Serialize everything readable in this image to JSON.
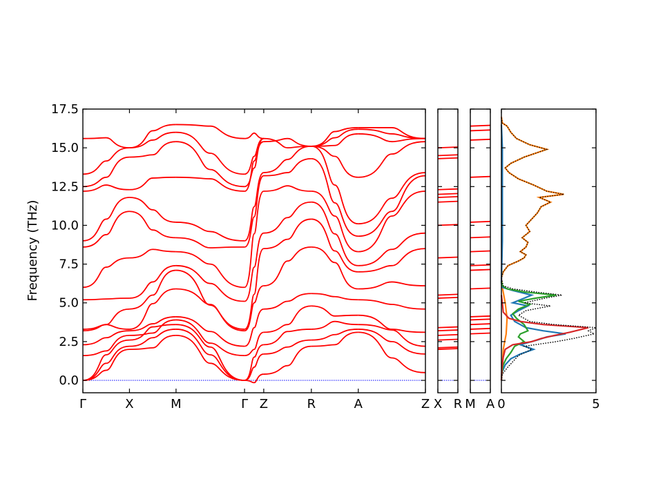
{
  "chart_data": [
    {
      "type": "line",
      "title": "",
      "xlabel": "",
      "ylabel": "Frequency (THz)",
      "ylim": [
        -0.8,
        17.5
      ],
      "yticks": [
        "0.0",
        "2.5",
        "5.0",
        "7.5",
        "10.0",
        "12.5",
        "15.0",
        "17.5"
      ],
      "xtick_labels": [
        "Γ",
        "X",
        "M",
        "Γ",
        "Z",
        "R",
        "A",
        "Z"
      ],
      "path_segments": [
        "Γ-X",
        "X-M",
        "M-Γ",
        "Γ-Z",
        "Z-R",
        "R-A",
        "A-Z"
      ],
      "series_color": "#ff0000",
      "zero_line_color": "#0000ff",
      "bands_at_high_symmetry_points": {
        "Γ": [
          0.0,
          0.0,
          0.0,
          1.6,
          2.3,
          3.2,
          3.3,
          5.2,
          6.0,
          8.6,
          9.0,
          12.2,
          12.5,
          13.3,
          15.6
        ],
        "X": [
          2.0,
          2.2,
          2.6,
          2.9,
          3.2,
          3.3,
          4.6,
          5.3,
          7.9,
          10.9,
          11.8,
          12.3,
          14.4,
          15.0
        ],
        "M": [
          2.9,
          3.3,
          3.6,
          3.9,
          4.1,
          5.9,
          7.1,
          7.4,
          8.3,
          9.2,
          10.2,
          13.1,
          15.4,
          16.0,
          16.5
        ],
        "Γ_2": [
          0.0,
          0.0,
          0.0,
          1.6,
          2.2,
          3.2,
          3.3,
          5.1,
          6.0,
          8.6,
          9.0,
          12.2,
          12.5,
          13.3,
          15.6
        ],
        "Z": [
          0.4,
          1.7,
          2.3,
          3.1,
          4.6,
          6.1,
          8.5,
          9.5,
          12.2,
          13.2,
          13.4,
          15.4,
          15.6
        ],
        "R": [
          2.2,
          2.6,
          3.3,
          4.8,
          5.6,
          8.6,
          10.4,
          11.5,
          12.2,
          14.3,
          15.1
        ],
        "A": [
          3.1,
          3.3,
          3.6,
          4.2,
          5.2,
          5.9,
          7.0,
          7.4,
          8.3,
          9.3,
          10.1,
          13.1,
          15.9,
          16.2,
          16.3
        ],
        "Z_2": [
          0.5,
          1.7,
          2.2,
          3.1,
          4.6,
          6.1,
          8.5,
          9.5,
          12.2,
          13.2,
          13.4,
          15.4,
          15.6
        ]
      }
    },
    {
      "type": "line",
      "xtick_labels": [
        "X",
        "R"
      ],
      "series_color": "#ff0000",
      "zero_line_color": "#0000ff",
      "band_levels": [
        2.0,
        2.1,
        2.6,
        2.9,
        3.2,
        3.4,
        5.3,
        5.5,
        7.9,
        10.0,
        11.5,
        11.8,
        12.0,
        12.3,
        14.3,
        14.5,
        15.0
      ]
    },
    {
      "type": "line",
      "xtick_labels": [
        "M",
        "A"
      ],
      "series_color": "#ff0000",
      "zero_line_color": "#0000ff",
      "band_levels": [
        3.0,
        3.3,
        3.6,
        3.9,
        4.1,
        5.9,
        7.1,
        7.4,
        8.3,
        9.2,
        10.2,
        13.1,
        15.5,
        16.1,
        16.4
      ]
    },
    {
      "type": "line",
      "orientation": "horizontal-density",
      "xlim": [
        0,
        5
      ],
      "xtick_labels": [
        "0",
        "5"
      ],
      "series": [
        {
          "color": "#000000",
          "style": "dotted",
          "points": [
            [
              0.0,
              0.0
            ],
            [
              0.05,
              0.4
            ],
            [
              0.3,
              0.8
            ],
            [
              0.6,
              1.2
            ],
            [
              0.9,
              1.6
            ],
            [
              1.6,
              2.0
            ],
            [
              1.2,
              2.2
            ],
            [
              2.9,
              2.5
            ],
            [
              3.8,
              2.7
            ],
            [
              4.9,
              3.0
            ],
            [
              4.6,
              3.2
            ],
            [
              5.0,
              3.4
            ],
            [
              2.8,
              3.6
            ],
            [
              1.5,
              3.8
            ],
            [
              0.9,
              4.2
            ],
            [
              1.3,
              4.5
            ],
            [
              2.6,
              4.8
            ],
            [
              1.2,
              5.0
            ],
            [
              2.3,
              5.3
            ],
            [
              3.2,
              5.5
            ],
            [
              1.8,
              5.7
            ],
            [
              0.6,
              5.9
            ],
            [
              0.1,
              6.1
            ],
            [
              0.0,
              6.6
            ],
            [
              0.1,
              7.0
            ],
            [
              0.35,
              7.4
            ],
            [
              0.9,
              7.7
            ],
            [
              1.2,
              7.9
            ],
            [
              1.3,
              8.1
            ],
            [
              1.0,
              8.3
            ],
            [
              1.3,
              8.6
            ],
            [
              1.4,
              8.9
            ],
            [
              1.1,
              9.2
            ],
            [
              1.5,
              9.6
            ],
            [
              1.3,
              10.0
            ],
            [
              1.6,
              10.4
            ],
            [
              1.9,
              10.8
            ],
            [
              2.1,
              11.2
            ],
            [
              2.6,
              11.5
            ],
            [
              2.0,
              11.8
            ],
            [
              3.3,
              12.0
            ],
            [
              2.4,
              12.2
            ],
            [
              1.7,
              12.6
            ],
            [
              0.9,
              13.0
            ],
            [
              0.4,
              13.4
            ],
            [
              0.2,
              13.7
            ],
            [
              0.5,
              14.0
            ],
            [
              1.2,
              14.4
            ],
            [
              2.4,
              14.9
            ],
            [
              1.5,
              15.2
            ],
            [
              0.8,
              15.6
            ],
            [
              0.5,
              16.0
            ],
            [
              0.3,
              16.4
            ],
            [
              0.05,
              16.6
            ],
            [
              0.0,
              17.0
            ]
          ]
        },
        {
          "color": "#ff7f0e",
          "style": "solid",
          "points": [
            [
              0.0,
              0.0
            ],
            [
              0.05,
              1.0
            ],
            [
              0.1,
              2.0
            ],
            [
              0.25,
              3.0
            ],
            [
              0.3,
              4.0
            ],
            [
              0.2,
              5.0
            ],
            [
              0.05,
              6.0
            ],
            [
              0.0,
              6.6
            ],
            [
              0.1,
              7.0
            ],
            [
              0.35,
              7.4
            ],
            [
              0.9,
              7.7
            ],
            [
              1.2,
              7.9
            ],
            [
              1.3,
              8.1
            ],
            [
              1.0,
              8.3
            ],
            [
              1.3,
              8.6
            ],
            [
              1.4,
              8.9
            ],
            [
              1.1,
              9.2
            ],
            [
              1.5,
              9.6
            ],
            [
              1.3,
              10.0
            ],
            [
              1.6,
              10.4
            ],
            [
              1.9,
              10.8
            ],
            [
              2.1,
              11.2
            ],
            [
              2.6,
              11.5
            ],
            [
              2.0,
              11.8
            ],
            [
              3.3,
              12.0
            ],
            [
              2.4,
              12.2
            ],
            [
              1.7,
              12.6
            ],
            [
              0.9,
              13.0
            ],
            [
              0.4,
              13.4
            ],
            [
              0.2,
              13.7
            ],
            [
              0.5,
              14.0
            ],
            [
              1.2,
              14.4
            ],
            [
              2.4,
              14.9
            ],
            [
              1.5,
              15.2
            ],
            [
              0.8,
              15.6
            ],
            [
              0.5,
              16.0
            ],
            [
              0.3,
              16.4
            ],
            [
              0.05,
              16.6
            ],
            [
              0.0,
              17.0
            ]
          ]
        },
        {
          "color": "#1f77b4",
          "style": "solid",
          "points": [
            [
              0.0,
              0.0
            ],
            [
              0.03,
              0.5
            ],
            [
              0.2,
              1.0
            ],
            [
              0.5,
              1.4
            ],
            [
              1.0,
              1.7
            ],
            [
              1.7,
              2.0
            ],
            [
              1.0,
              2.3
            ],
            [
              1.9,
              2.6
            ],
            [
              2.4,
              2.8
            ],
            [
              3.4,
              3.0
            ],
            [
              2.2,
              3.2
            ],
            [
              1.3,
              3.4
            ],
            [
              0.7,
              3.8
            ],
            [
              0.5,
              4.2
            ],
            [
              0.9,
              4.5
            ],
            [
              1.4,
              4.8
            ],
            [
              0.6,
              5.0
            ],
            [
              1.2,
              5.3
            ],
            [
              1.6,
              5.5
            ],
            [
              0.6,
              5.8
            ],
            [
              0.05,
              6.0
            ],
            [
              0.0,
              6.3
            ],
            [
              0.05,
              9.0
            ],
            [
              0.05,
              12.0
            ],
            [
              0.05,
              15.0
            ],
            [
              0.0,
              16.5
            ]
          ]
        },
        {
          "color": "#2ca02c",
          "style": "solid",
          "points": [
            [
              0.0,
              0.0
            ],
            [
              0.03,
              0.5
            ],
            [
              0.1,
              1.0
            ],
            [
              0.25,
              1.4
            ],
            [
              0.5,
              1.8
            ],
            [
              0.7,
              2.2
            ],
            [
              1.2,
              2.5
            ],
            [
              0.9,
              2.8
            ],
            [
              1.0,
              3.0
            ],
            [
              1.4,
              3.2
            ],
            [
              1.2,
              3.6
            ],
            [
              0.8,
              4.0
            ],
            [
              0.6,
              4.3
            ],
            [
              0.9,
              4.6
            ],
            [
              1.5,
              4.9
            ],
            [
              0.9,
              5.1
            ],
            [
              1.8,
              5.3
            ],
            [
              2.9,
              5.5
            ],
            [
              1.2,
              5.7
            ],
            [
              0.3,
              5.9
            ],
            [
              0.05,
              6.1
            ],
            [
              0.0,
              6.4
            ]
          ]
        },
        {
          "color": "#d62728",
          "style": "solid",
          "points": [
            [
              0.0,
              0.0
            ],
            [
              0.03,
              0.8
            ],
            [
              0.1,
              1.5
            ],
            [
              0.2,
              2.0
            ],
            [
              0.6,
              2.3
            ],
            [
              1.6,
              2.5
            ],
            [
              2.1,
              2.7
            ],
            [
              2.8,
              2.9
            ],
            [
              3.6,
              3.1
            ],
            [
              4.6,
              3.4
            ],
            [
              2.2,
              3.6
            ],
            [
              1.0,
              3.8
            ],
            [
              0.4,
              4.0
            ],
            [
              0.1,
              4.4
            ],
            [
              0.05,
              5.0
            ],
            [
              0.0,
              5.5
            ]
          ]
        }
      ]
    }
  ]
}
